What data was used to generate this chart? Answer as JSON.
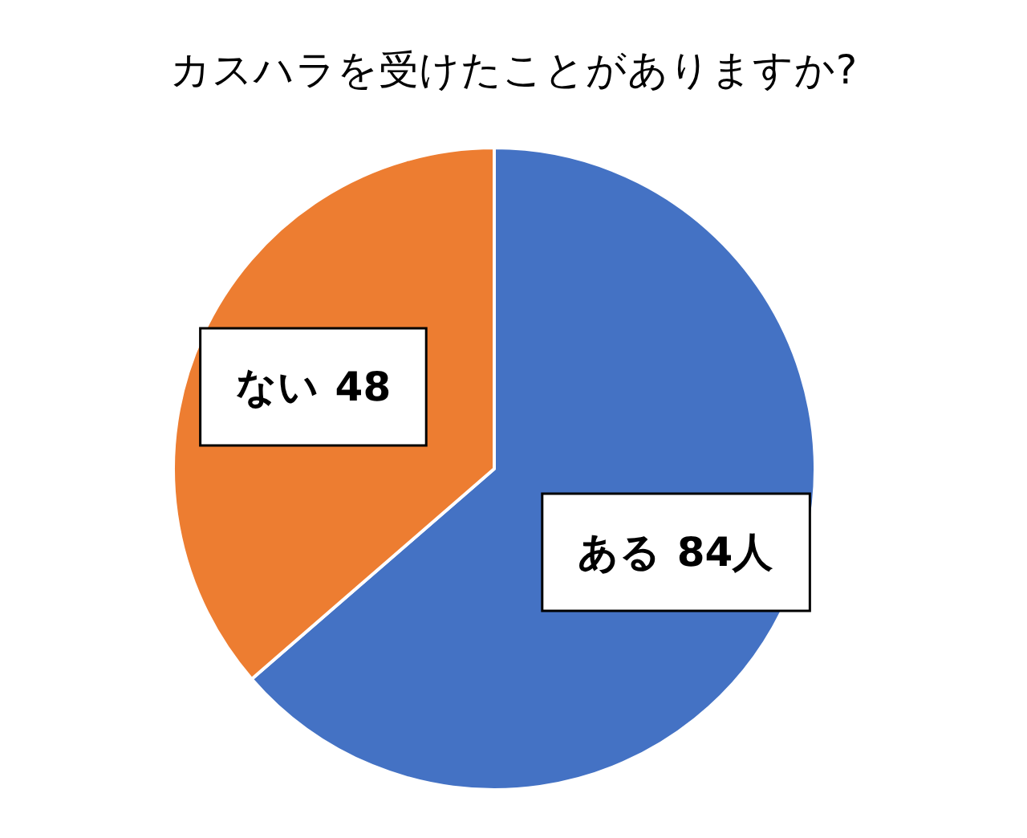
{
  "chart_data": {
    "type": "pie",
    "title": "カスハラを受けたことがありますか?",
    "categories": [
      "ある",
      "ない"
    ],
    "values": [
      84,
      48
    ],
    "value_labels": [
      "84人",
      "48"
    ],
    "colors": [
      "#4472c4",
      "#ed7d31"
    ]
  }
}
